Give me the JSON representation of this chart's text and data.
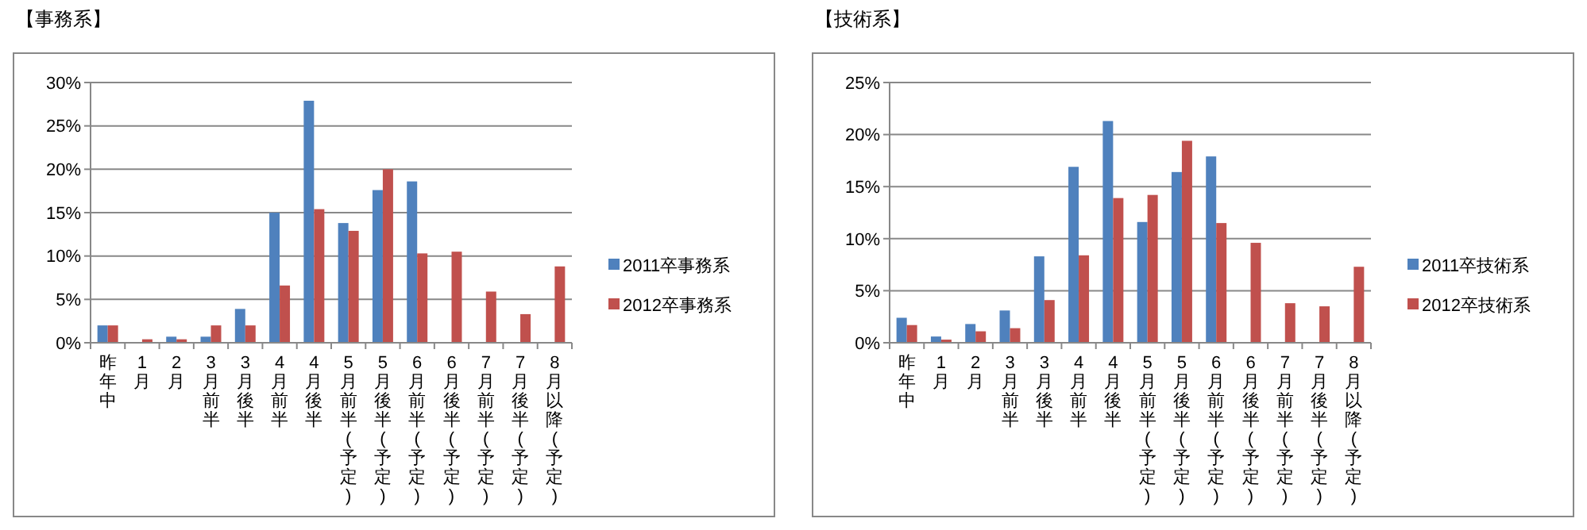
{
  "chart_data": [
    {
      "type": "bar",
      "title": "【事務系】",
      "categories": [
        "昨年中",
        "1月",
        "2月",
        "3月前半",
        "3月後半",
        "4月前半",
        "4月後半",
        "5月前半(予定)",
        "5月後半(予定)",
        "6月前半(予定)",
        "6月後半(予定)",
        "7月前半(予定)",
        "7月後半(予定)",
        "8月以降(予定)"
      ],
      "series": [
        {
          "name": "2011卒事務系",
          "color": "#4f81bd",
          "values": [
            2.0,
            0,
            0.7,
            0.7,
            3.9,
            15.0,
            27.9,
            13.8,
            17.6,
            18.6,
            null,
            null,
            null,
            null
          ]
        },
        {
          "name": "2012卒事務系",
          "color": "#c0504d",
          "values": [
            2.0,
            0.4,
            0.4,
            2.0,
            2.0,
            6.6,
            15.4,
            12.9,
            20.0,
            10.3,
            10.5,
            5.9,
            3.3,
            8.8
          ]
        }
      ],
      "ylim": [
        0,
        30
      ],
      "yticks": [
        {
          "value": 0,
          "label": "0%"
        },
        {
          "value": 5,
          "label": "5%"
        },
        {
          "value": 10,
          "label": "10%"
        },
        {
          "value": 15,
          "label": "15%"
        },
        {
          "value": 20,
          "label": "20%"
        },
        {
          "value": 25,
          "label": "25%"
        },
        {
          "value": 30,
          "label": "30%"
        }
      ],
      "grid": "y",
      "legend": "right"
    },
    {
      "type": "bar",
      "title": "【技術系】",
      "categories": [
        "昨年中",
        "1月",
        "2月",
        "3月前半",
        "3月後半",
        "4月前半",
        "4月後半",
        "5月前半(予定)",
        "5月後半(予定)",
        "6月前半(予定)",
        "6月後半(予定)",
        "7月前半(予定)",
        "7月後半(予定)",
        "8月以降(予定)"
      ],
      "series": [
        {
          "name": "2011卒技術系",
          "color": "#4f81bd",
          "values": [
            2.4,
            0.6,
            1.8,
            3.1,
            8.3,
            16.9,
            21.3,
            11.6,
            16.4,
            17.9,
            null,
            null,
            null,
            null
          ]
        },
        {
          "name": "2012卒技術系",
          "color": "#c0504d",
          "values": [
            1.7,
            0.3,
            1.1,
            1.4,
            4.1,
            8.4,
            13.9,
            14.2,
            19.4,
            11.5,
            9.6,
            3.8,
            3.5,
            7.3
          ]
        }
      ],
      "ylim": [
        0,
        25
      ],
      "yticks": [
        {
          "value": 0,
          "label": "0%"
        },
        {
          "value": 5,
          "label": "5%"
        },
        {
          "value": 10,
          "label": "10%"
        },
        {
          "value": 15,
          "label": "15%"
        },
        {
          "value": 20,
          "label": "20%"
        },
        {
          "value": 25,
          "label": "25%"
        }
      ],
      "grid": "y",
      "legend": "right"
    }
  ]
}
